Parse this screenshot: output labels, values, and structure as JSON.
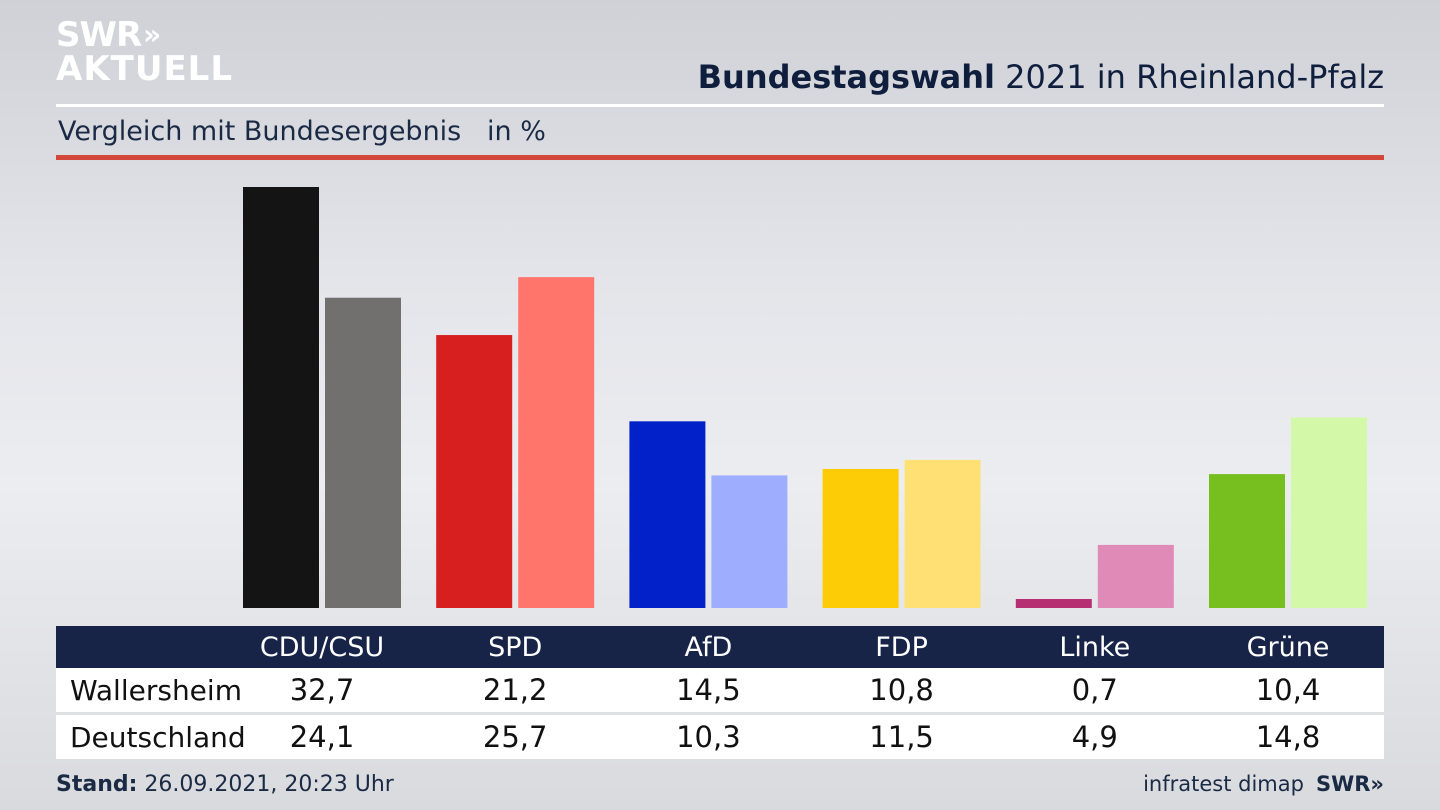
{
  "logo": {
    "line1": "SWR",
    "chevrons": "»",
    "line2": "AKTUELL"
  },
  "header": {
    "title_bold": "Bundestagswahl",
    "title_rest": " 2021 in Rheinland-Pfalz",
    "subtitle": "Vergleich mit Bundesergebnis   in %"
  },
  "chart_data": {
    "type": "bar",
    "categories": [
      "CDU/CSU",
      "SPD",
      "AfD",
      "FDP",
      "Linke",
      "Grüne"
    ],
    "series": [
      {
        "name": "Wallersheim",
        "values": [
          32.7,
          21.2,
          14.5,
          10.8,
          0.7,
          10.4
        ],
        "colors": [
          "#141414",
          "#d81f1f",
          "#0321c9",
          "#fecb07",
          "#b62f72",
          "#77be1f"
        ]
      },
      {
        "name": "Deutschland",
        "values": [
          24.1,
          25.7,
          10.3,
          11.5,
          4.9,
          14.8
        ],
        "colors": [
          "#72706e",
          "#ff756c",
          "#9eadfe",
          "#fee074",
          "#e08ab8",
          "#d3f8a8"
        ]
      }
    ],
    "ylim": [
      0,
      32.7
    ],
    "grid": false,
    "legend": "none"
  },
  "table": {
    "rows": [
      {
        "label": "Wallersheim",
        "values": [
          "32,7",
          "21,2",
          "14,5",
          "10,8",
          "0,7",
          "10,4"
        ]
      },
      {
        "label": "Deutschland",
        "values": [
          "24,1",
          "25,7",
          "10,3",
          "11,5",
          "4,9",
          "14,8"
        ]
      }
    ]
  },
  "footer": {
    "stand_label": "Stand:",
    "stand_value": " 26.09.2021, 20:23 Uhr",
    "source": "infratest dimap",
    "brand": "SWR»"
  }
}
